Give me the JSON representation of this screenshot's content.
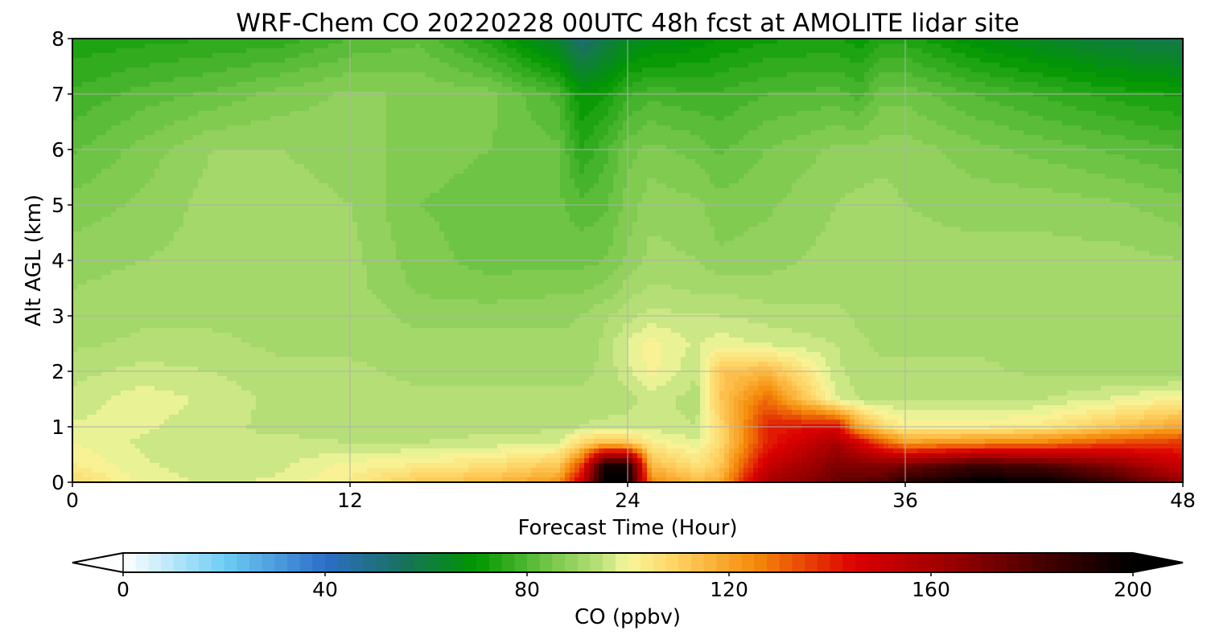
{
  "chart_data": {
    "type": "heatmap",
    "title": "WRF-Chem CO  20220228 00UTC 48h fcst at AMOLITE lidar site",
    "xlabel": "Forecast Time (Hour)",
    "ylabel": "Alt AGL (km)",
    "xlim": [
      0,
      48
    ],
    "ylim": [
      0,
      8
    ],
    "x_ticks": [
      "0",
      "12",
      "24",
      "36",
      "48"
    ],
    "y_ticks": [
      "0",
      "1",
      "2",
      "3",
      "4",
      "5",
      "6",
      "7",
      "8"
    ],
    "grid": true,
    "colorbar": {
      "label": "CO  (ppbv)",
      "range": [
        0,
        200
      ],
      "ticks": [
        "0",
        "40",
        "80",
        "120",
        "160",
        "200"
      ],
      "extend": "both",
      "stops": [
        [
          0,
          "#ffffff"
        ],
        [
          20,
          "#6ecdf5"
        ],
        [
          40,
          "#2d6ec8"
        ],
        [
          55,
          "#197060"
        ],
        [
          70,
          "#009600"
        ],
        [
          85,
          "#78c84b"
        ],
        [
          95,
          "#bee17d"
        ],
        [
          100,
          "#f7f79b"
        ],
        [
          110,
          "#ffd060"
        ],
        [
          125,
          "#f58c0a"
        ],
        [
          145,
          "#dc0000"
        ],
        [
          165,
          "#960000"
        ],
        [
          180,
          "#500000"
        ],
        [
          200,
          "#000000"
        ]
      ]
    },
    "x": [
      0,
      3,
      6,
      9,
      12,
      15,
      18,
      21,
      22,
      23,
      24,
      25,
      27,
      28,
      30,
      33,
      34,
      35,
      36,
      39,
      42,
      45,
      48
    ],
    "y": [
      0,
      0.3,
      0.7,
      1,
      1.5,
      2,
      2.5,
      3,
      3.5,
      4,
      5,
      6,
      7,
      8
    ],
    "values": [
      [
        108,
        99,
        97,
        98,
        103,
        112,
        115,
        122,
        150,
        200,
        200,
        125,
        115,
        118,
        160,
        175,
        178,
        180,
        190,
        200,
        200,
        185,
        165
      ],
      [
        103,
        98,
        96,
        97,
        101,
        103,
        106,
        112,
        135,
        195,
        195,
        115,
        106,
        112,
        150,
        170,
        170,
        168,
        172,
        185,
        180,
        168,
        150
      ],
      [
        100,
        97,
        95,
        96,
        95,
        95,
        96,
        98,
        108,
        115,
        112,
        103,
        98,
        108,
        140,
        160,
        148,
        135,
        122,
        125,
        128,
        135,
        138
      ],
      [
        98,
        98,
        96,
        94,
        94,
        94,
        94,
        94,
        95,
        96,
        96,
        96,
        95,
        108,
        140,
        145,
        120,
        108,
        102,
        102,
        104,
        112,
        120
      ],
      [
        96,
        99,
        97,
        94,
        93,
        93,
        93,
        93,
        93,
        93,
        94,
        96,
        94,
        112,
        130,
        98,
        95,
        94,
        94,
        94,
        95,
        98,
        102
      ],
      [
        94,
        96,
        95,
        93,
        93,
        92,
        92,
        92,
        92,
        93,
        97,
        101,
        95,
        112,
        115,
        96,
        93,
        93,
        93,
        93,
        92,
        91,
        90
      ],
      [
        92,
        93,
        93,
        92,
        92,
        91,
        91,
        91,
        91,
        93,
        98,
        101,
        97,
        99,
        97,
        95,
        93,
        92,
        92,
        92,
        92,
        91,
        90
      ],
      [
        91,
        92,
        92,
        92,
        92,
        89,
        89,
        89,
        90,
        92,
        94,
        96,
        95,
        95,
        94,
        93,
        92,
        92,
        91,
        92,
        92,
        92,
        91
      ],
      [
        90,
        91,
        92,
        92,
        91,
        87,
        86,
        87,
        87,
        88,
        91,
        93,
        92,
        92,
        91,
        92,
        92,
        92,
        91,
        91,
        92,
        92,
        91
      ],
      [
        89,
        90,
        91,
        92,
        91,
        86,
        84,
        84,
        84,
        85,
        88,
        91,
        90,
        88,
        89,
        91,
        92,
        92,
        91,
        91,
        91,
        91,
        90
      ],
      [
        86,
        88,
        91,
        91,
        90,
        85,
        84,
        83,
        81,
        82,
        86,
        89,
        88,
        86,
        87,
        90,
        91,
        91,
        90,
        89,
        89,
        88,
        86
      ],
      [
        82,
        86,
        90,
        90,
        89,
        86,
        85,
        83,
        75,
        79,
        84,
        86,
        84,
        82,
        85,
        88,
        88,
        89,
        89,
        86,
        84,
        82,
        80
      ],
      [
        78,
        81,
        83,
        86,
        88,
        87,
        86,
        79,
        70,
        72,
        77,
        79,
        78,
        78,
        80,
        81,
        79,
        84,
        84,
        80,
        77,
        74,
        72
      ],
      [
        73,
        74,
        75,
        76,
        80,
        82,
        74,
        62,
        52,
        58,
        64,
        66,
        68,
        70,
        72,
        73,
        71,
        74,
        74,
        68,
        64,
        60,
        58
      ]
    ]
  }
}
